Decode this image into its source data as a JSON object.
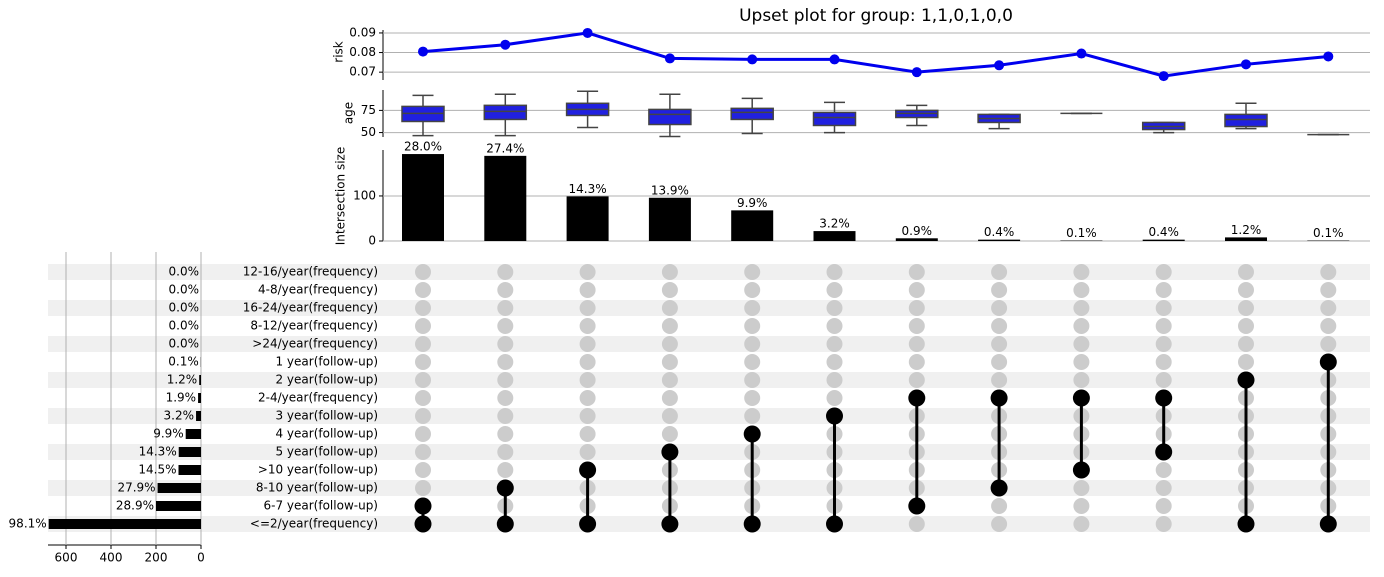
{
  "chart_data": [
    {
      "type": "line",
      "title": "Upset plot for group: 1,1,0,1,0,0",
      "ylabel": "risk",
      "color": "#0000ee",
      "values": [
        0.0805,
        0.084,
        0.09,
        0.077,
        0.0765,
        0.0765,
        0.07,
        0.0735,
        0.0795,
        0.068,
        0.074,
        0.078
      ],
      "ylim": [
        0.066,
        0.0915
      ],
      "yticks": [
        0.07,
        0.08,
        0.09
      ],
      "grid": true
    },
    {
      "type": "box",
      "ylabel": "age",
      "color": "#2020e0",
      "whislo": [
        46.6,
        46.6,
        55.7,
        45.5,
        48.9,
        50,
        58,
        54.5,
        71.6,
        50,
        54.5,
        47.7
      ],
      "q1": [
        62.5,
        64.8,
        69.3,
        59.1,
        64.8,
        58,
        67,
        61.4,
        71.6,
        53.4,
        56.8,
        47.7
      ],
      "med": [
        71.6,
        73.9,
        76.1,
        70.5,
        72.7,
        67,
        71.6,
        65.9,
        71.6,
        56.8,
        64.8,
        47.7
      ],
      "q3": [
        79.5,
        80.7,
        83,
        76.1,
        77.3,
        72.7,
        75,
        70.5,
        71.6,
        61.4,
        70.5,
        47.7
      ],
      "whishi": [
        92,
        93.2,
        96.6,
        93.2,
        88.6,
        84,
        80.7,
        70.5,
        71.6,
        61.4,
        83,
        47.7
      ],
      "ylim": [
        45,
        98
      ],
      "yticks": [
        50,
        75
      ],
      "grid": true
    },
    {
      "type": "bar",
      "ylabel": "Intersection size",
      "color": "#000000",
      "values": [
        193,
        189,
        99,
        96,
        68,
        22,
        6,
        3,
        1,
        3,
        8,
        1
      ],
      "value_labels": [
        "28.0%",
        "27.4%",
        "14.3%",
        "13.9%",
        "9.9%",
        "3.2%",
        "0.9%",
        "0.4%",
        "0.1%",
        "0.4%",
        "1.2%",
        "0.1%"
      ],
      "ylim": [
        0,
        202
      ],
      "yticks": [
        0,
        100
      ],
      "grid": true
    },
    {
      "type": "matrix",
      "color": "#000000",
      "off_color": "#cccccc",
      "categories": [
        "12-16/year(frequency)",
        "4-8/year(frequency)",
        "16-24/year(frequency)",
        "8-12/year(frequency)",
        ">24/year(frequency)",
        "1 year(follow-up)",
        "2 year(follow-up)",
        "2-4/year(frequency)",
        "3 year(follow-up)",
        "4 year(follow-up)",
        "5 year(follow-up)",
        ">10 year(follow-up)",
        "8-10 year(follow-up)",
        "6-7 year(follow-up)",
        "<=2/year(frequency)"
      ],
      "members": [
        [
          13,
          14
        ],
        [
          12,
          14
        ],
        [
          11,
          14
        ],
        [
          10,
          14
        ],
        [
          9,
          14
        ],
        [
          8,
          14
        ],
        [
          7,
          13
        ],
        [
          7,
          12
        ],
        [
          7,
          11
        ],
        [
          7,
          10
        ],
        [
          6,
          14
        ],
        [
          5,
          14
        ]
      ]
    },
    {
      "type": "hbar",
      "color": "#000000",
      "values": [
        0,
        0,
        0,
        0,
        0,
        1,
        8,
        13,
        22,
        68,
        99,
        100,
        193,
        200,
        677
      ],
      "value_labels": [
        "0.0%",
        "0.0%",
        "0.0%",
        "0.0%",
        "0.0%",
        "0.1%",
        "1.2%",
        "1.9%",
        "3.2%",
        "9.9%",
        "14.3%",
        "14.5%",
        "27.9%",
        "28.9%",
        "98.1%"
      ],
      "xlim": [
        0,
        680
      ],
      "xticks": [
        0,
        200,
        400,
        600
      ],
      "grid": true
    }
  ]
}
